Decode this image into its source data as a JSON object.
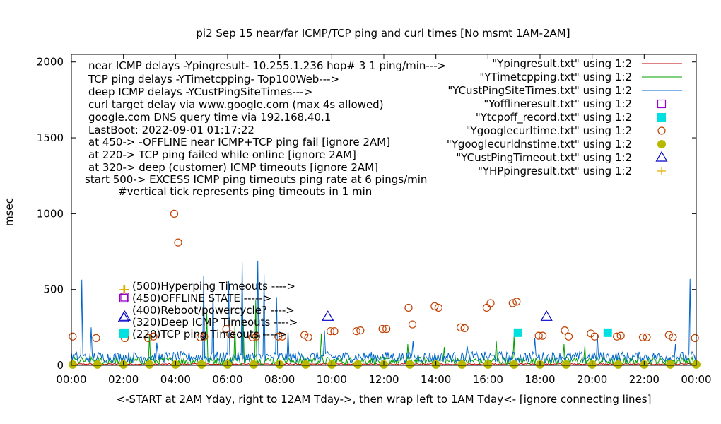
{
  "chart_data": {
    "type": "scatter",
    "title": "pi2 Sep 15  near/far ICMP/TCP ping and curl times [No msmt 1AM-2AM]",
    "xlabel": "<-START at 2AM Yday, right to 12AM Tday->, then wrap left to 1AM Tday<- [ignore connecting lines]",
    "ylabel": "msec",
    "xlim": [
      0,
      24
    ],
    "ylim": [
      0,
      2050
    ],
    "x_ticks": [
      "00:00",
      "02:00",
      "04:00",
      "06:00",
      "08:00",
      "10:00",
      "12:00",
      "14:00",
      "16:00",
      "18:00",
      "20:00",
      "22:00",
      "00:00"
    ],
    "y_ticks": [
      0,
      500,
      1000,
      1500,
      2000
    ],
    "grid": false,
    "legend_position": "top-right",
    "notes": [
      "near ICMP delays -Ypingresult- 10.255.1.236 hop# 3 1 ping/min--->",
      "TCP ping delays -YTimetcpping- Top100Web--->",
      "deep ICMP delays -YCustPingSiteTimes--->",
      "curl target delay via www.google.com (max 4s allowed)",
      "google.com DNS query time via 192.168.40.1",
      "LastBoot: 2022-09-01 01:17:22",
      "at 450-> -OFFLINE near ICMP+TCP ping fail [ignore 2AM]",
      "at 220-> TCP ping failed while online [ignore 2AM]",
      "at 320-> deep (customer) ICMP timeouts [ignore 2AM]",
      "start 500-> EXCESS ICMP ping timeouts ping rate at 6 pings/min",
      "#vertical tick represents ping timeouts in 1 min"
    ],
    "annotations": [
      "(500)Hyperping Timeouts ---->",
      "(450)OFFLINE STATE ----->",
      "(400)Reboot/powercycle? ---->",
      "(320)Deep ICMP Timeouts ---->",
      "(220)TCP ping Timeouts ---->"
    ],
    "series": [
      {
        "name": "\"Ypingresult.txt\" using 1:2",
        "style": "line",
        "color": "#c00000",
        "baseline": 8
      },
      {
        "name": "\"YTimetcpping.txt\" using 1:2",
        "style": "line",
        "color": "#00a000",
        "baseline": 30,
        "spikes": [
          [
            3.0,
            200
          ],
          [
            5.2,
            350
          ],
          [
            6.3,
            260
          ],
          [
            6.6,
            300
          ],
          [
            7.1,
            430
          ],
          [
            9.6,
            210
          ],
          [
            12.9,
            140
          ],
          [
            14.3,
            120
          ],
          [
            16.3,
            160
          ],
          [
            17.0,
            190
          ],
          [
            18.9,
            140
          ],
          [
            19.7,
            130
          ]
        ]
      },
      {
        "name": "\"YCustPingSiteTimes.txt\" using 1:2",
        "style": "line",
        "color": "#0066cc",
        "baseline": 55,
        "spikes": [
          [
            0.38,
            565
          ],
          [
            0.75,
            250
          ],
          [
            3.3,
            150
          ],
          [
            5.1,
            590
          ],
          [
            5.45,
            500
          ],
          [
            6.05,
            555
          ],
          [
            6.55,
            680
          ],
          [
            7.15,
            690
          ],
          [
            7.4,
            600
          ],
          [
            7.9,
            450
          ],
          [
            8.3,
            225
          ],
          [
            9.7,
            230
          ],
          [
            13.1,
            160
          ],
          [
            15.2,
            130
          ],
          [
            17.8,
            180
          ],
          [
            20.2,
            210
          ],
          [
            23.2,
            140
          ],
          [
            23.75,
            570
          ]
        ]
      },
      {
        "name": "\"Yofflineresult.txt\" using 1:2",
        "style": "open-square",
        "color": "#9900cc",
        "points": [
          [
            2.05,
            450
          ]
        ]
      },
      {
        "name": "\"Ytcpoff_record.txt\" using 1:2",
        "style": "filled-square",
        "color": "#00e0e0",
        "points": [
          [
            2.05,
            215
          ],
          [
            17.15,
            215
          ],
          [
            20.6,
            215
          ]
        ]
      },
      {
        "name": "\"Ygooglecurltime.txt\" using 1:2",
        "style": "open-circle",
        "color": "#c04000",
        "points": [
          [
            0.05,
            190
          ],
          [
            0.95,
            180
          ],
          [
            2.05,
            180
          ],
          [
            2.95,
            180
          ],
          [
            3.15,
            190
          ],
          [
            3.95,
            1000
          ],
          [
            4.1,
            810
          ],
          [
            4.95,
            185
          ],
          [
            5.1,
            190
          ],
          [
            5.95,
            240
          ],
          [
            6.1,
            205
          ],
          [
            6.95,
            185
          ],
          [
            7.1,
            190
          ],
          [
            7.95,
            190
          ],
          [
            8.1,
            190
          ],
          [
            8.95,
            200
          ],
          [
            9.1,
            185
          ],
          [
            9.95,
            225
          ],
          [
            10.1,
            225
          ],
          [
            10.95,
            225
          ],
          [
            11.1,
            230
          ],
          [
            11.95,
            240
          ],
          [
            12.1,
            240
          ],
          [
            12.95,
            380
          ],
          [
            13.1,
            270
          ],
          [
            13.95,
            390
          ],
          [
            14.1,
            380
          ],
          [
            14.95,
            250
          ],
          [
            15.1,
            245
          ],
          [
            15.95,
            380
          ],
          [
            16.1,
            410
          ],
          [
            16.95,
            410
          ],
          [
            17.1,
            420
          ],
          [
            17.95,
            195
          ],
          [
            18.1,
            195
          ],
          [
            18.95,
            230
          ],
          [
            19.1,
            190
          ],
          [
            19.95,
            210
          ],
          [
            20.1,
            190
          ],
          [
            20.95,
            190
          ],
          [
            21.1,
            195
          ],
          [
            21.95,
            185
          ],
          [
            22.1,
            185
          ],
          [
            22.95,
            200
          ],
          [
            23.1,
            185
          ],
          [
            23.95,
            180
          ]
        ]
      },
      {
        "name": "\"Ygooglecurldnstime.txt\" using 1:2",
        "style": "filled-circle",
        "color": "#b8b800",
        "points": [
          [
            0.05,
            5
          ],
          [
            1.0,
            5
          ],
          [
            2.0,
            5
          ],
          [
            3.0,
            5
          ],
          [
            4.0,
            5
          ],
          [
            5.0,
            5
          ],
          [
            6.0,
            5
          ],
          [
            7.0,
            5
          ],
          [
            8.0,
            5
          ],
          [
            9.0,
            5
          ],
          [
            10.0,
            5
          ],
          [
            11.0,
            5
          ],
          [
            12.0,
            5
          ],
          [
            13.0,
            5
          ],
          [
            14.0,
            5
          ],
          [
            15.0,
            5
          ],
          [
            16.0,
            5
          ],
          [
            17.0,
            5
          ],
          [
            18.0,
            5
          ],
          [
            19.0,
            5
          ],
          [
            20.0,
            5
          ],
          [
            21.0,
            5
          ],
          [
            22.0,
            5
          ],
          [
            23.0,
            5
          ],
          [
            24.0,
            5
          ]
        ]
      },
      {
        "name": "\"YCustPingTimeout.txt\" using 1:2",
        "style": "open-triangle",
        "color": "#0000cc",
        "points": [
          [
            2.05,
            320
          ],
          [
            9.85,
            320
          ],
          [
            18.25,
            320
          ]
        ]
      },
      {
        "name": "\"YHPpingresult.txt\" using 1:2",
        "style": "plus",
        "color": "#e0b000",
        "points": [
          [
            2.05,
            500
          ]
        ]
      }
    ]
  }
}
